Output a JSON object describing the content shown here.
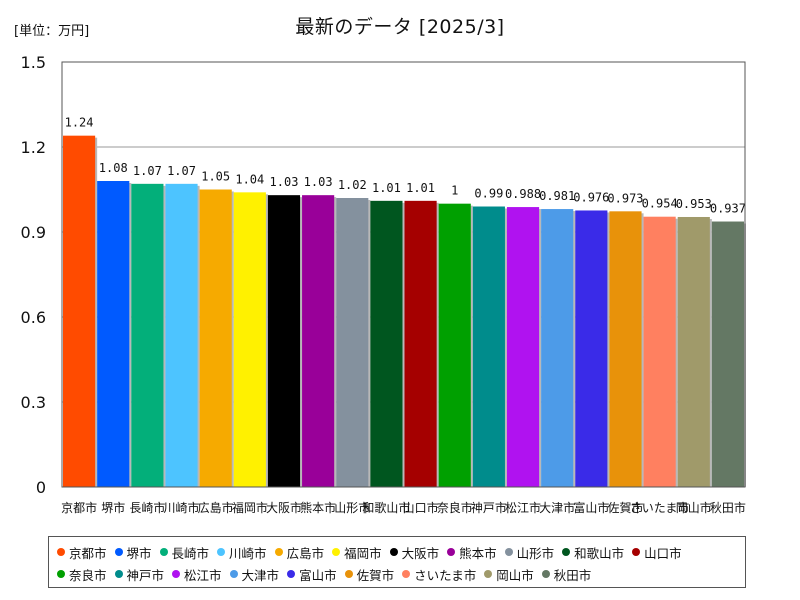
{
  "chart_data": {
    "type": "bar",
    "title": "最新のデータ [2025/3]",
    "unit_label": "[単位：万円]",
    "xlabel": "",
    "ylabel": "",
    "ylim": [
      0,
      1.5
    ],
    "yticks": [
      0,
      0.3,
      0.6,
      0.9,
      1.2,
      1.5
    ],
    "ytick_labels": [
      "0",
      "0.3",
      "0.6",
      "0.9",
      "1.2",
      "1.5"
    ],
    "grid": true,
    "legend_position": "bottom",
    "categories": [
      "京都市",
      "堺市",
      "長崎市",
      "川崎市",
      "広島市",
      "福岡市",
      "大阪市",
      "熊本市",
      "山形市",
      "和歌山市",
      "山口市",
      "奈良市",
      "神戸市",
      "松江市",
      "大津市",
      "富山市",
      "佐賀市",
      "さいたま市",
      "岡山市",
      "秋田市"
    ],
    "values": [
      1.24,
      1.08,
      1.07,
      1.07,
      1.05,
      1.04,
      1.03,
      1.03,
      1.02,
      1.01,
      1.01,
      1,
      0.99,
      0.988,
      0.981,
      0.976,
      0.973,
      0.954,
      0.953,
      0.937
    ],
    "value_labels": [
      "1.24",
      "1.08",
      "1.07",
      "1.07",
      "1.05",
      "1.04",
      "1.03",
      "1.03",
      "1.02",
      "1.01",
      "1.01",
      "1",
      "0.99",
      "0.988",
      "0.981",
      "0.976",
      "0.973",
      "0.954",
      "0.953",
      "0.937"
    ],
    "colors": [
      "#ff4b00",
      "#005aff",
      "#03af7a",
      "#4dc4ff",
      "#f6aa00",
      "#fff100",
      "#000000",
      "#990099",
      "#84919e",
      "#00561f",
      "#a50000",
      "#00a000",
      "#008c8c",
      "#b012f0",
      "#4d9be8",
      "#3a2be8",
      "#e8920a",
      "#ff8060",
      "#a09a6a",
      "#647864"
    ]
  }
}
